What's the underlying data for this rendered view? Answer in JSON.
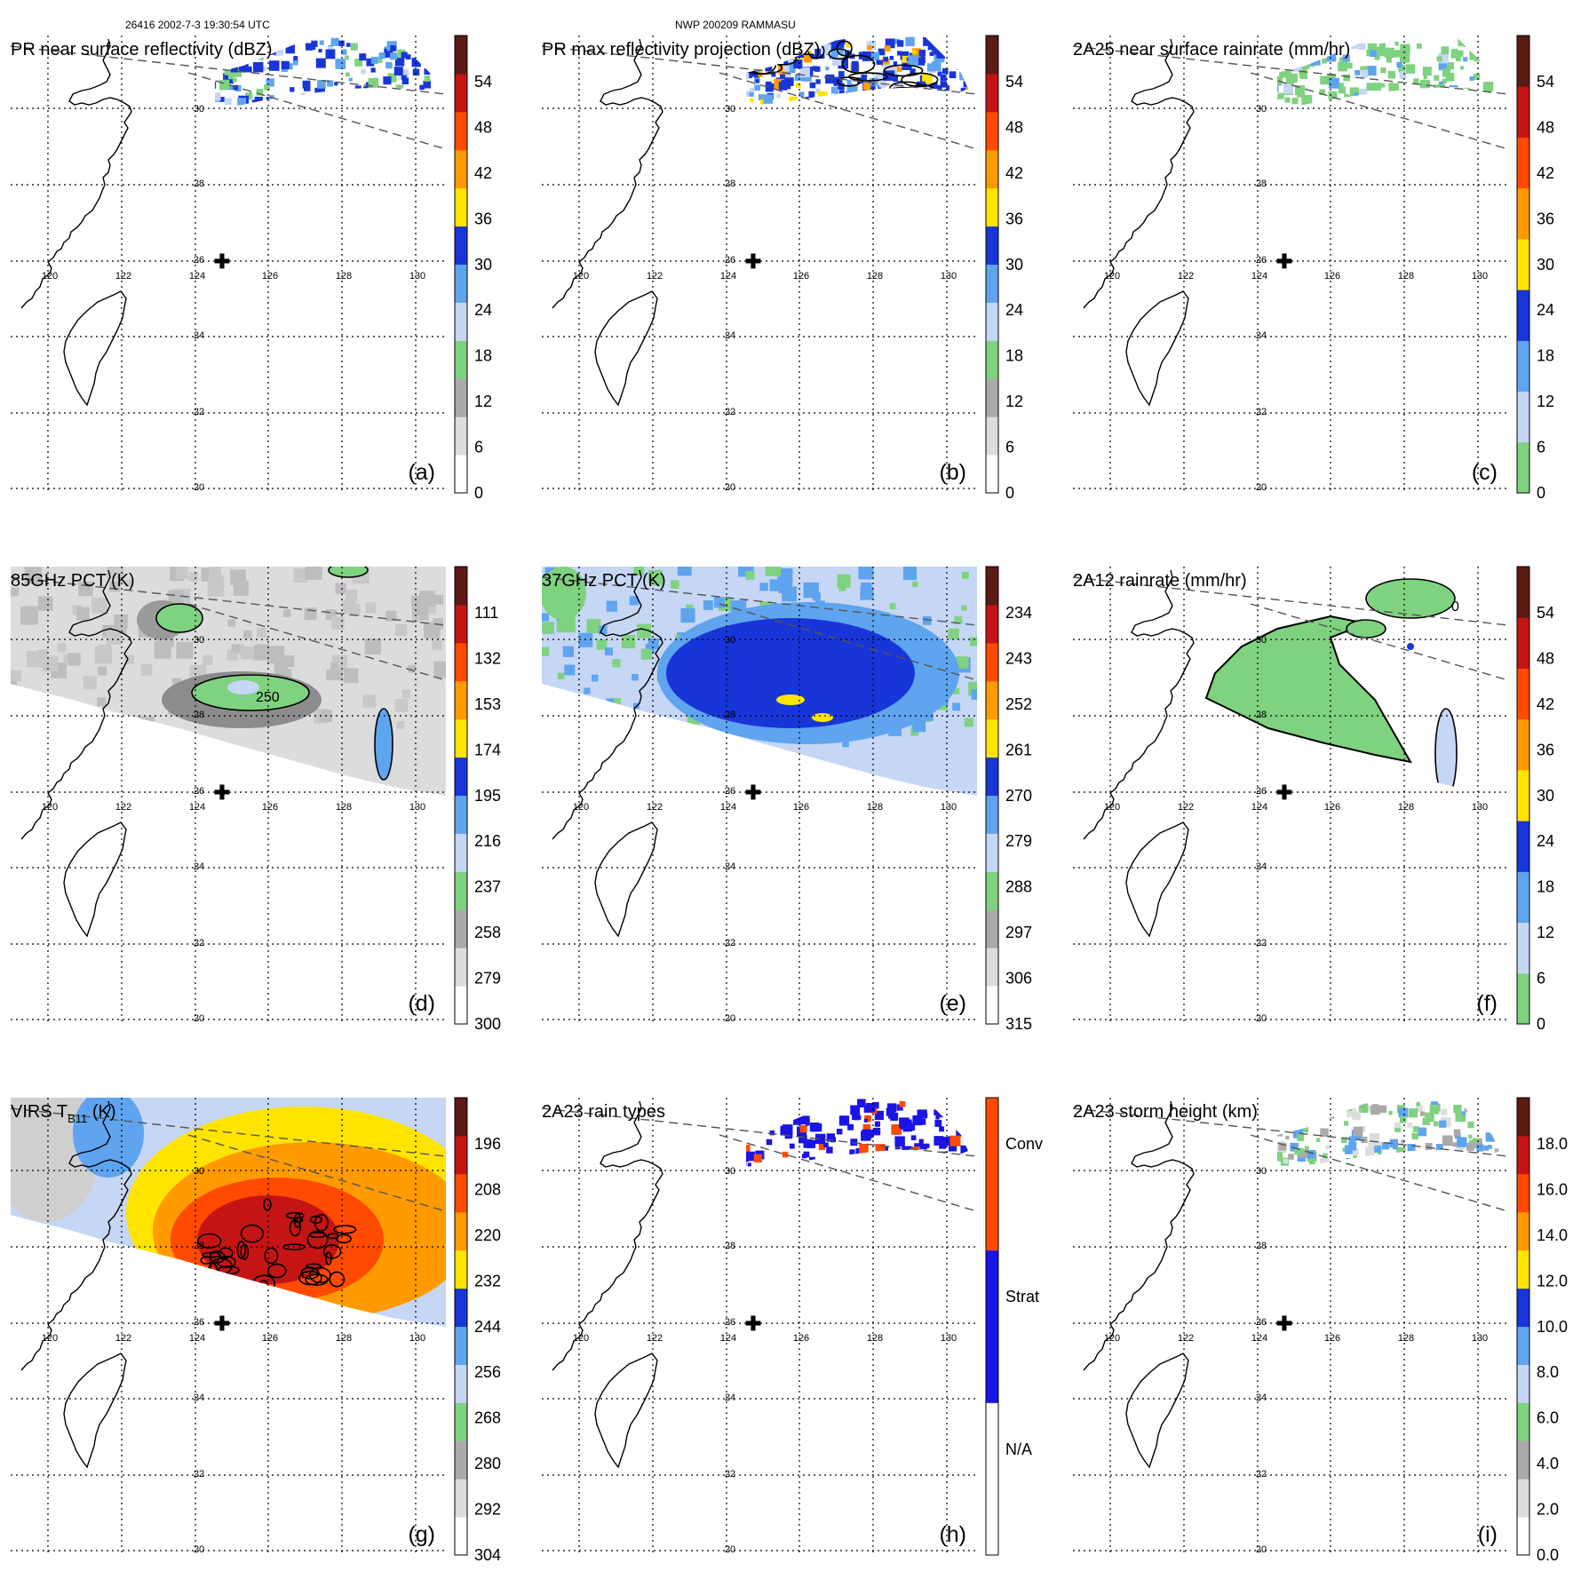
{
  "header": {
    "left": "26416 2002-7-3 19:30:54 UTC",
    "center": "NWP 200209 RAMMASU"
  },
  "grid": {
    "lon_labels": [
      "120",
      "122",
      "124",
      "126",
      "128",
      "130"
    ],
    "lat_labels": [
      "30",
      "28",
      "26",
      "24",
      "22",
      "20"
    ]
  },
  "colors": {
    "map_line": "#000000",
    "grid_line": "#000000",
    "swath": "#555555"
  },
  "panels": [
    {
      "letter": "(a)",
      "title": "PR near surface reflectivity (dBZ)",
      "colorbar": [
        "#ffffff",
        "#dddddd",
        "#aaaaaa",
        "#7fd27f",
        "#c6d6f5",
        "#5fa4ef",
        "#1836d8",
        "#ffe400",
        "#ff9a00",
        "#ff4a00",
        "#c41414",
        "#5c1a14"
      ],
      "ticks": [
        "54",
        "48",
        "42",
        "36",
        "30",
        "24",
        "18",
        "12",
        "6",
        "0"
      ],
      "field": "pr_narrow"
    },
    {
      "letter": "(b)",
      "title": "PR max reflectivity projection (dBZ)",
      "colorbar": [
        "#ffffff",
        "#dddddd",
        "#aaaaaa",
        "#7fd27f",
        "#c6d6f5",
        "#5fa4ef",
        "#1836d8",
        "#ffe400",
        "#ff9a00",
        "#ff4a00",
        "#c41414",
        "#5c1a14"
      ],
      "ticks": [
        "54",
        "48",
        "42",
        "36",
        "30",
        "24",
        "18",
        "12",
        "6",
        "0"
      ],
      "field": "pr_narrow_dense"
    },
    {
      "letter": "(c)",
      "title": "2A25 near surface rainrate (mm/hr)",
      "colorbar": [
        "#7fd27f",
        "#c6d6f5",
        "#5fa4ef",
        "#1836d8",
        "#ffe400",
        "#ff9a00",
        "#ff4a00",
        "#c41414",
        "#5c1a14"
      ],
      "ticks": [
        "54",
        "48",
        "42",
        "36",
        "30",
        "24",
        "18",
        "12",
        "6",
        "0"
      ],
      "field": "pr_narrow_green"
    },
    {
      "letter": "(d)",
      "title": "85GHz PCT (K)",
      "colorbar": [
        "#ffffff",
        "#dddddd",
        "#aaaaaa",
        "#7fd27f",
        "#c6d6f5",
        "#5fa4ef",
        "#1836d8",
        "#ffe400",
        "#ff9a00",
        "#ff4a00",
        "#c41414",
        "#5c1a14"
      ],
      "ticks": [
        "111",
        "132",
        "153",
        "174",
        "195",
        "216",
        "237",
        "258",
        "279",
        "300"
      ],
      "field": "tmi85",
      "contour_label": "250"
    },
    {
      "letter": "(e)",
      "title": "37GHz PCT (K)",
      "colorbar": [
        "#ffffff",
        "#dddddd",
        "#aaaaaa",
        "#7fd27f",
        "#c6d6f5",
        "#5fa4ef",
        "#1836d8",
        "#ffe400",
        "#ff9a00",
        "#ff4a00",
        "#c41414",
        "#5c1a14"
      ],
      "ticks": [
        "234",
        "243",
        "252",
        "261",
        "270",
        "279",
        "288",
        "297",
        "306",
        "315"
      ],
      "field": "tmi37"
    },
    {
      "letter": "(f)",
      "title": "2A12 rainrate (mm/hr)",
      "colorbar": [
        "#7fd27f",
        "#c6d6f5",
        "#5fa4ef",
        "#1836d8",
        "#ffe400",
        "#ff9a00",
        "#ff4a00",
        "#c41414",
        "#5c1a14"
      ],
      "ticks": [
        "54",
        "48",
        "42",
        "36",
        "30",
        "24",
        "18",
        "12",
        "6",
        "0"
      ],
      "field": "tmi_rain",
      "contour_label": "0"
    },
    {
      "letter": "(g)",
      "title": "VIRS T",
      "title_sub": "B11",
      "title_end": " (K)",
      "colorbar": [
        "#ffffff",
        "#dddddd",
        "#aaaaaa",
        "#7fd27f",
        "#c6d6f5",
        "#5fa4ef",
        "#1836d8",
        "#ffe400",
        "#ff9a00",
        "#ff4a00",
        "#c41414",
        "#5c1a14"
      ],
      "ticks": [
        "196",
        "208",
        "220",
        "232",
        "244",
        "256",
        "268",
        "280",
        "292",
        "304"
      ],
      "field": "virs"
    },
    {
      "letter": "(h)",
      "title": "2A23 rain types",
      "colorbar": [
        "#ffffff",
        "#1a14e6",
        "#ff4a00"
      ],
      "ticks": [
        "Conv",
        "Strat",
        "N/A"
      ],
      "field": "raintype"
    },
    {
      "letter": "(i)",
      "title": "2A23 storm height (km)",
      "colorbar": [
        "#ffffff",
        "#dddddd",
        "#aaaaaa",
        "#7fd27f",
        "#c6d6f5",
        "#5fa4ef",
        "#1836d8",
        "#ffe400",
        "#ff9a00",
        "#ff4a00",
        "#c41414",
        "#5c1a14"
      ],
      "ticks": [
        "18.0",
        "16.0",
        "14.0",
        "12.0",
        "10.0",
        "8.0",
        "6.0",
        "4.0",
        "2.0",
        "0.0"
      ],
      "field": "stormheight"
    }
  ]
}
